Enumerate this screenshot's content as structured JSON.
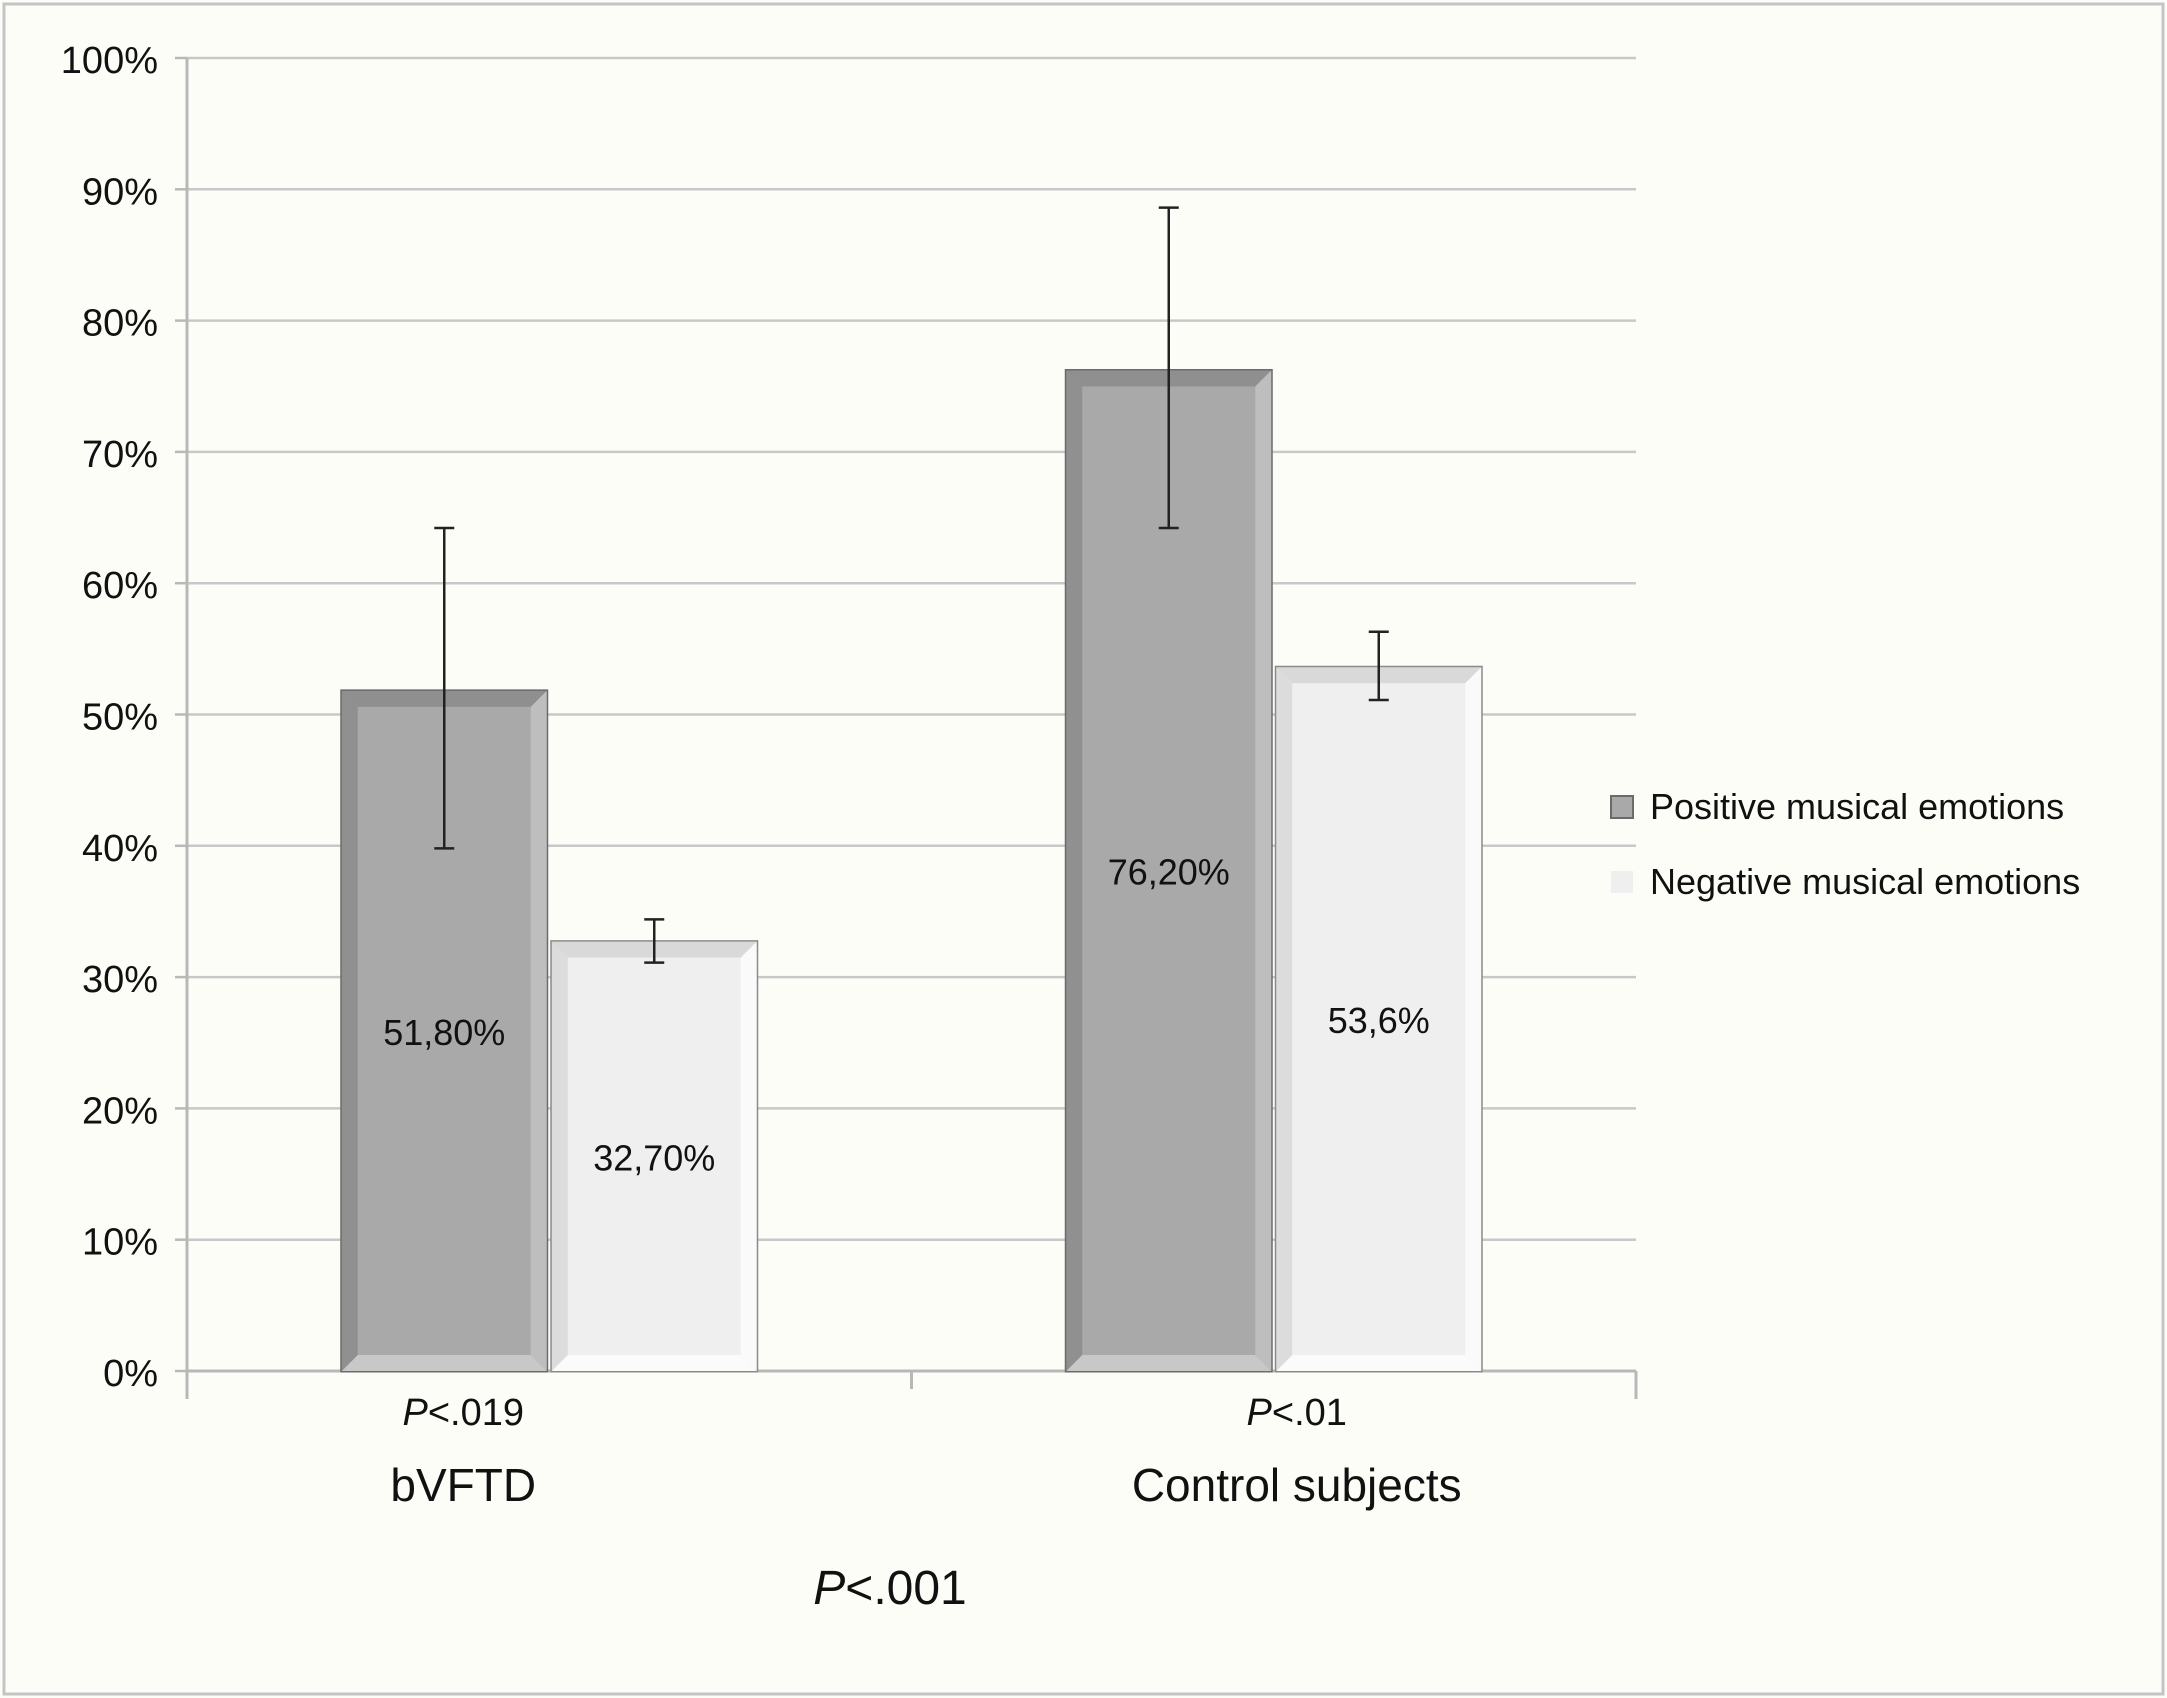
{
  "chart_data": {
    "type": "bar",
    "title": "",
    "xlabel": "",
    "ylabel": "",
    "categories": [
      "bVFTD",
      "Control subjects"
    ],
    "category_pvalues": [
      {
        "prefix": "P",
        "text": "<.019"
      },
      {
        "prefix": "P",
        "text": "<.01"
      }
    ],
    "overall_pvalue": {
      "prefix": "P",
      "text": "<.001"
    },
    "series": [
      {
        "name": "Positive musical emotions",
        "values": [
          51.8,
          76.2
        ],
        "labels": [
          "51,80%",
          "76,20%"
        ],
        "error_low": [
          39.8,
          64.2
        ],
        "error_high": [
          64.2,
          88.6
        ],
        "color": "#a8a9a8"
      },
      {
        "name": "Negative musical emotions",
        "values": [
          32.7,
          53.6
        ],
        "labels": [
          "32,70%",
          "53,6%"
        ],
        "error_low": [
          31.1,
          51.1
        ],
        "error_high": [
          34.4,
          56.3
        ],
        "color": "#efeff0"
      }
    ],
    "ylim": [
      0,
      100
    ],
    "yticks": [
      0,
      10,
      20,
      30,
      40,
      50,
      60,
      70,
      80,
      90,
      100
    ],
    "ytick_labels": [
      "0%",
      "10%",
      "20%",
      "30%",
      "40%",
      "50%",
      "60%",
      "70%",
      "80%",
      "90%",
      "100%"
    ],
    "grid": true,
    "legend_position": "right"
  }
}
